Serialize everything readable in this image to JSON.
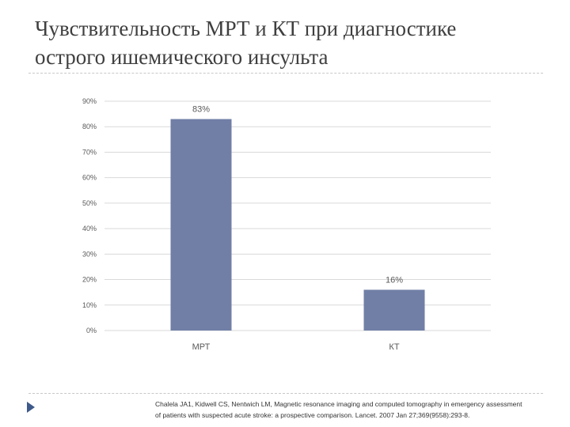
{
  "slide": {
    "title_line1": "Чувствительность МРТ и КТ при диагностике",
    "title_line2": "острого ишемического инсульта"
  },
  "chart_data": {
    "type": "bar",
    "categories": [
      "МРТ",
      "КТ"
    ],
    "values": [
      83,
      16
    ],
    "value_labels": [
      "83%",
      "16%"
    ],
    "yticks": [
      "0%",
      "10%",
      "20%",
      "30%",
      "40%",
      "50%",
      "60%",
      "70%",
      "80%",
      "90%"
    ],
    "ylim": [
      0,
      90
    ],
    "title": "",
    "xlabel": "",
    "ylabel": "",
    "grid": true,
    "bar_color": "#717fa6",
    "grid_color": "#d9d9d9",
    "label_color": "#595959"
  },
  "reference": {
    "line1": "Chalela JA1, Kidwell CS, Nentwich LM, Magnetic resonance imaging and computed tomography in emergency assessment",
    "line2": "of patients with suspected acute stroke: a prospective comparison. Lancet. 2007 Jan 27;369(9558):293-8."
  }
}
